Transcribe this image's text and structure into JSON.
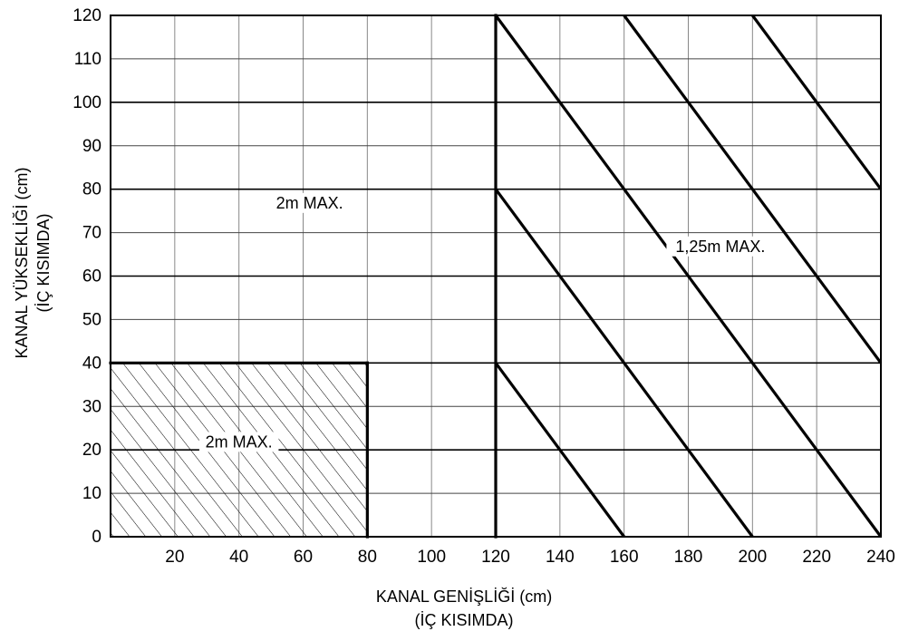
{
  "chart_data": {
    "type": "line",
    "xlabel": "KANAL GENİŞLİĞİ (cm)",
    "xlabel_sub": "(İÇ KISIMDA)",
    "ylabel": "KANAL YÜKSEKLİĞİ (cm)",
    "ylabel_sub": "(İÇ KISIMDA)",
    "xlim": [
      0,
      240
    ],
    "ylim": [
      0,
      120
    ],
    "x_ticks": [
      20,
      40,
      60,
      80,
      100,
      120,
      140,
      160,
      180,
      200,
      220,
      240
    ],
    "y_ticks": [
      0,
      10,
      20,
      30,
      40,
      50,
      60,
      70,
      80,
      90,
      100,
      110,
      120
    ],
    "grid": true,
    "hatched_region": {
      "x": [
        0,
        80
      ],
      "y": [
        0,
        40
      ],
      "label": "2m MAX."
    },
    "boundary_lines": [
      {
        "x": [
          0,
          80
        ],
        "y": [
          40,
          40
        ]
      },
      {
        "x": [
          80,
          80
        ],
        "y": [
          40,
          0
        ]
      },
      {
        "x": [
          120,
          120
        ],
        "y": [
          0,
          120
        ]
      }
    ],
    "diagonal_lines": [
      {
        "x": [
          120,
          160
        ],
        "y": [
          40,
          0
        ]
      },
      {
        "x": [
          120,
          200
        ],
        "y": [
          80,
          0
        ]
      },
      {
        "x": [
          120,
          240
        ],
        "y": [
          120,
          0
        ]
      },
      {
        "x": [
          160,
          240
        ],
        "y": [
          120,
          40
        ]
      },
      {
        "x": [
          200,
          240
        ],
        "y": [
          120,
          80
        ]
      }
    ],
    "annotations": [
      {
        "text": "2m MAX.",
        "x": 62,
        "y": 76
      },
      {
        "text": "1,25m MAX.",
        "x": 190,
        "y": 66
      }
    ]
  }
}
